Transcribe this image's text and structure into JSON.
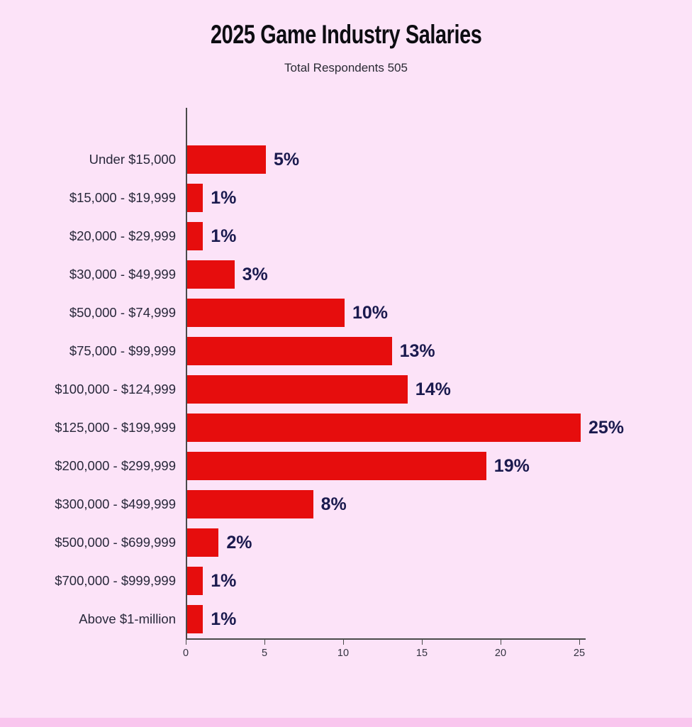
{
  "page": {
    "title": "2025 Game Industry Salaries",
    "subtitle": "Total Respondents 505"
  },
  "chart_data": {
    "type": "bar",
    "orientation": "horizontal",
    "title": "2025 Game Industry Salaries",
    "subtitle": "Total Respondents 505",
    "categories": [
      "Under $15,000",
      "$15,000 - $19,999",
      "$20,000 - $29,999",
      "$30,000 - $49,999",
      "$50,000 - $74,999",
      "$75,000 - $99,999",
      "$100,000 - $124,999",
      "$125,000 - $199,999",
      "$200,000 - $299,999",
      "$300,000 - $499,999",
      "$500,000 - $699,999",
      "$700,000 - $999,999",
      "Above $1-million"
    ],
    "values": [
      5,
      1,
      1,
      3,
      10,
      13,
      14,
      25,
      19,
      8,
      2,
      1,
      1
    ],
    "value_labels": [
      "5%",
      "1%",
      "1%",
      "3%",
      "10%",
      "13%",
      "14%",
      "25%",
      "19%",
      "8%",
      "2%",
      "1%",
      "1%"
    ],
    "xlabel": "",
    "ylabel": "",
    "xlim": [
      0,
      26
    ],
    "x_ticks": [
      0,
      5,
      10,
      15,
      20,
      25
    ],
    "grid": false,
    "legend": false,
    "colors": {
      "bar": "#e60d0d",
      "value_label": "#1a1a4e",
      "category_label": "#28283a",
      "axis": "#4a4a4a",
      "background": "#fce3f8",
      "footer_strip": "#f9c6ee"
    }
  }
}
